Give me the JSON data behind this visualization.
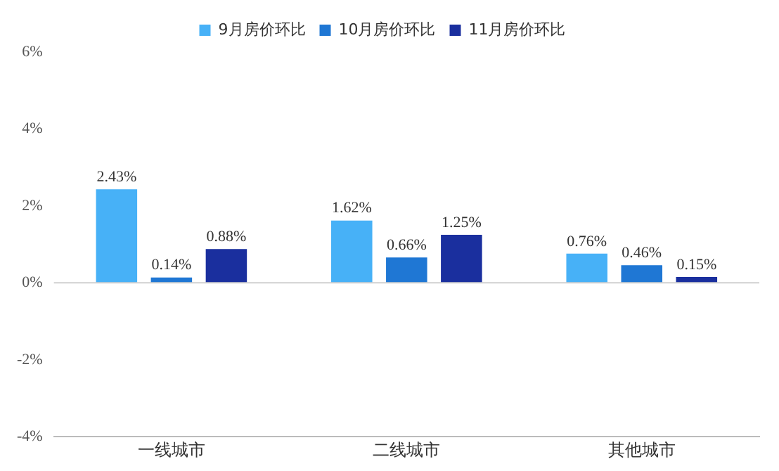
{
  "chart_data": {
    "type": "bar",
    "categories": [
      "一线城市",
      "二线城市",
      "其他城市"
    ],
    "series": [
      {
        "name": "9月房价环比",
        "color": "#47b1f7",
        "values": [
          2.43,
          1.62,
          0.76
        ],
        "value_labels": [
          "2.43%",
          "1.62%",
          "0.76%"
        ]
      },
      {
        "name": "10月房价环比",
        "color": "#1f77d4",
        "values": [
          0.14,
          0.66,
          0.46
        ],
        "value_labels": [
          "0.14%",
          "0.66%",
          "0.46%"
        ]
      },
      {
        "name": "11月房价环比",
        "color": "#1a2f9e",
        "values": [
          0.88,
          1.25,
          0.15
        ],
        "value_labels": [
          "0.88%",
          "1.25%",
          "0.15%"
        ]
      }
    ],
    "ylim": [
      -4,
      6
    ],
    "yticks": [
      {
        "value": -4,
        "label": "-4%"
      },
      {
        "value": -2,
        "label": "-2%"
      },
      {
        "value": 0,
        "label": "0%"
      },
      {
        "value": 2,
        "label": "2%"
      },
      {
        "value": 4,
        "label": "4%"
      },
      {
        "value": 6,
        "label": "6%"
      }
    ],
    "grid": false,
    "legend": "top",
    "ref_lines": [
      {
        "axis": "y",
        "value": 0,
        "color": "#d0d0d0"
      }
    ]
  }
}
